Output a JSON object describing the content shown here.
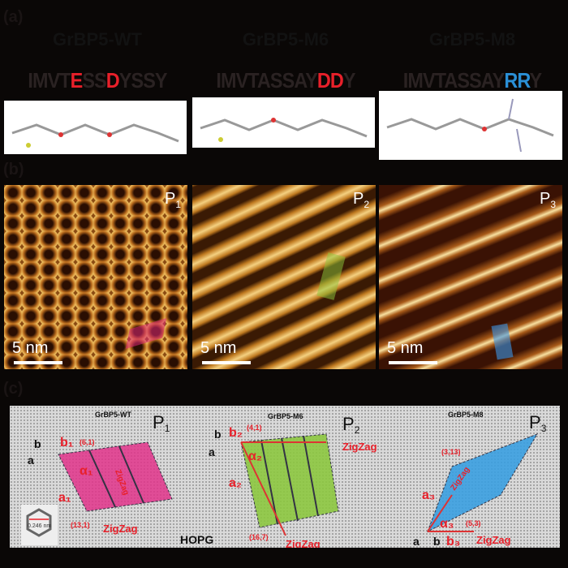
{
  "panel_labels": {
    "a": "(a)",
    "b": "(b)",
    "c": "(c)"
  },
  "peptides": [
    {
      "name": "GrBP5-WT",
      "sequence": [
        {
          "t": "IMVT",
          "c": "#2a2222"
        },
        {
          "t": "E",
          "c": "#e8202a"
        },
        {
          "t": "SS",
          "c": "#2a2222"
        },
        {
          "t": "D",
          "c": "#e8202a"
        },
        {
          "t": "YSSY",
          "c": "#2a2222"
        }
      ],
      "phase": "P",
      "phase_sub": "1",
      "scale": "5 nm"
    },
    {
      "name": "GrBP5-M6",
      "sequence": [
        {
          "t": "IMVTASSAY",
          "c": "#2a2222"
        },
        {
          "t": "DD",
          "c": "#e8202a"
        },
        {
          "t": "Y",
          "c": "#2a2222"
        }
      ],
      "phase": "P",
      "phase_sub": "2",
      "scale": "5 nm"
    },
    {
      "name": "GrBP5-M8",
      "sequence": [
        {
          "t": "IMVTASSAY",
          "c": "#2a2222"
        },
        {
          "t": "RR",
          "c": "#2a8fd6"
        },
        {
          "t": "Y",
          "c": "#2a2222"
        }
      ],
      "phase": "P",
      "phase_sub": "3",
      "scale": "5 nm"
    }
  ],
  "panel_c": {
    "titles": [
      "GrBP5-WT",
      "GrBP5-M6",
      "GrBP5-M8"
    ],
    "phases": [
      "P",
      "P",
      "P"
    ],
    "phase_subs": [
      "1",
      "2",
      "3"
    ],
    "p1": {
      "b": "b",
      "a": "a",
      "b1": "b₁",
      "v1": "(6,1)",
      "alpha": "α₁",
      "a1": "a₁",
      "v2": "(13,1)",
      "zz": "ZigZag",
      "zz2": "ZigZag"
    },
    "p2": {
      "b": "b",
      "a": "a",
      "b2": "b₂",
      "v1": "(4,1)",
      "alpha": "α₂",
      "a2": "a₂",
      "v2": "(16,7)",
      "zz": "ZigZag",
      "zz2": "ZigZag"
    },
    "p3": {
      "b": "b",
      "a": "a",
      "b3": "b₃",
      "v1": "(3,13)",
      "alpha": "α₃",
      "a3": "a₃",
      "v2": "(5,3)",
      "zz": "ZigZag",
      "zz2": "ZigZag"
    },
    "hopg": "HOPG",
    "lattice": "0.246 nm"
  },
  "colors": {
    "p1": "#e0338a",
    "p2": "#8cc63f",
    "p3": "#3a9ee0",
    "annot": "#e8202a"
  }
}
